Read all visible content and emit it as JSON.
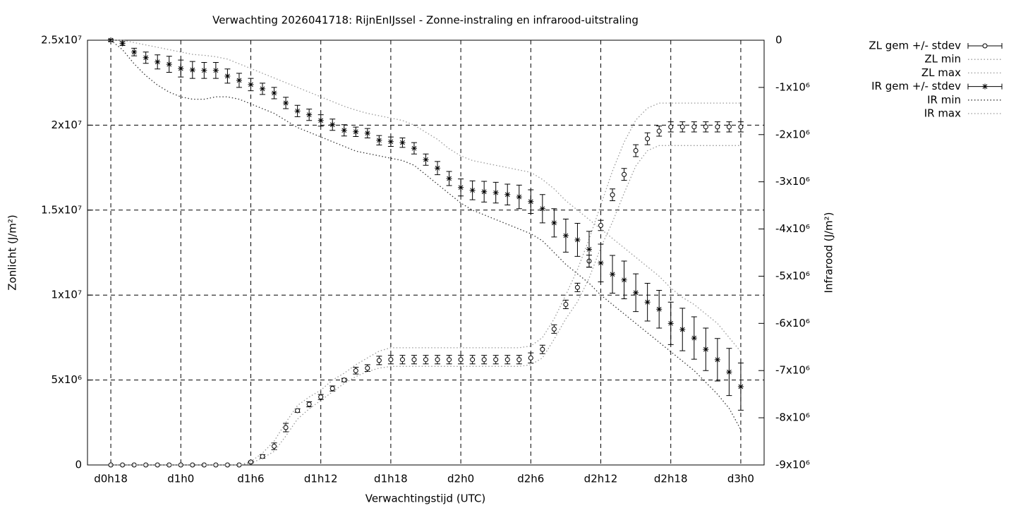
{
  "chart_data": {
    "type": "errorbar",
    "title": "Verwachting 2026041718: RijnEnIJssel - Zonne-instraling en infrarood-uitstraling",
    "x_label": "Verwachtingstijd (UTC)",
    "y_label": "Zonlicht (J/m²)",
    "y2_label": "Infrarood (J/m²)",
    "x": [
      18,
      19,
      20,
      21,
      22,
      23,
      24,
      25,
      26,
      27,
      28,
      29,
      30,
      31,
      32,
      33,
      34,
      35,
      36,
      37,
      38,
      39,
      40,
      41,
      42,
      43,
      44,
      45,
      46,
      47,
      48,
      49,
      50,
      51,
      52,
      53,
      54,
      55,
      56,
      57,
      58,
      59,
      60,
      61,
      62,
      63,
      64,
      65,
      66,
      67,
      68,
      69,
      70,
      71,
      72
    ],
    "xlim": [
      16,
      74
    ],
    "xticks": [
      {
        "value": 18,
        "label": "d0h18"
      },
      {
        "value": 24,
        "label": "d1h0"
      },
      {
        "value": 30,
        "label": "d1h6"
      },
      {
        "value": 36,
        "label": "d1h12"
      },
      {
        "value": 42,
        "label": "d1h18"
      },
      {
        "value": 48,
        "label": "d2h0"
      },
      {
        "value": 54,
        "label": "d2h6"
      },
      {
        "value": 60,
        "label": "d2h12"
      },
      {
        "value": 66,
        "label": "d2h18"
      },
      {
        "value": 72,
        "label": "d3h0"
      }
    ],
    "ylim": [
      0,
      25000000
    ],
    "yticks": [
      0,
      {
        "value": 5000000,
        "label": "5x10⁶"
      },
      {
        "value": 10000000,
        "label": "1x10⁷"
      },
      {
        "value": 15000000,
        "label": "1.5x10⁷"
      },
      {
        "value": 20000000,
        "label": "2x10⁷"
      },
      {
        "value": 25000000,
        "label": "2.5x10⁷"
      }
    ],
    "y2lim": [
      -9000000,
      0
    ],
    "y2ticks": [
      0,
      {
        "value": -1000000,
        "label": "-1x10⁶"
      },
      {
        "value": -2000000,
        "label": "-2x10⁶"
      },
      {
        "value": -3000000,
        "label": "-3x10⁶"
      },
      {
        "value": -4000000,
        "label": "-4x10⁶"
      },
      {
        "value": -5000000,
        "label": "-5x10⁶"
      },
      {
        "value": -6000000,
        "label": "-6x10⁶"
      },
      {
        "value": -7000000,
        "label": "-7x10⁶"
      },
      {
        "value": -8000000,
        "label": "-8x10⁶"
      },
      {
        "value": -9000000,
        "label": "-9x10⁶"
      }
    ],
    "grid": true,
    "legend": "outside-top-right",
    "series": [
      {
        "name": "ZL gem +/- stdev",
        "color": "#000000",
        "style": "errorbars",
        "marker": "circle",
        "axis": "y",
        "values": [
          0,
          0,
          0,
          0,
          0,
          0,
          0,
          0,
          0,
          0,
          0,
          0,
          170000.0,
          500000.0,
          1100000.0,
          2200000.0,
          3200000.0,
          3570000.0,
          4000000.0,
          4500000.0,
          5000000.0,
          5550000.0,
          5700000.0,
          6150000.0,
          6200000.0,
          6200000.0,
          6200000.0,
          6200000.0,
          6200000.0,
          6200000.0,
          6200000.0,
          6200000.0,
          6200000.0,
          6200000.0,
          6200000.0,
          6200000.0,
          6300000.0,
          6800000.0,
          8000000.0,
          9450000.0,
          10450000.0,
          12000000.0,
          14100000.0,
          15900000.0,
          17100000.0,
          18500000.0,
          19200000.0,
          19650000.0,
          19900000.0,
          19900000.0,
          19900000.0,
          19900000.0,
          19900000.0,
          19900000.0,
          19900000.0
        ],
        "error": [
          0,
          0,
          0,
          0,
          0,
          0,
          0,
          0,
          0,
          0,
          0,
          0,
          50000.0,
          100000.0,
          200000.0,
          250000.0,
          100000.0,
          150000.0,
          150000.0,
          150000.0,
          100000.0,
          200000.0,
          200000.0,
          250000.0,
          250000.0,
          250000.0,
          250000.0,
          250000.0,
          250000.0,
          250000.0,
          250000.0,
          250000.0,
          250000.0,
          250000.0,
          250000.0,
          250000.0,
          300000.0,
          250000.0,
          250000.0,
          250000.0,
          250000.0,
          350000.0,
          300000.0,
          350000.0,
          350000.0,
          350000.0,
          350000.0,
          300000.0,
          300000.0,
          300000.0,
          300000.0,
          300000.0,
          300000.0,
          300000.0,
          300000.0
        ]
      },
      {
        "name": "ZL min",
        "color": "#999999",
        "style": "dotted",
        "axis": "y",
        "values": [
          0,
          0,
          0,
          0,
          0,
          0,
          0,
          0,
          0,
          0,
          0,
          0,
          100000.0,
          400000.0,
          800000.0,
          1700000.0,
          2700000.0,
          3300000.0,
          3800000.0,
          4300000.0,
          4800000.0,
          5200000.0,
          5500000.0,
          5700000.0,
          5800000.0,
          5800000.0,
          5800000.0,
          5800000.0,
          5800000.0,
          5800000.0,
          5800000.0,
          5800000.0,
          5800000.0,
          5800000.0,
          5800000.0,
          5800000.0,
          5900000.0,
          6300000.0,
          7400000.0,
          8600000.0,
          9600000.0,
          11000000.0,
          12800000.0,
          14300000.0,
          16000000.0,
          17600000.0,
          18500000.0,
          18800000.0,
          18800000.0,
          18800000.0,
          18800000.0,
          18800000.0,
          18800000.0,
          18800000.0,
          18800000.0
        ]
      },
      {
        "name": "ZL max",
        "color": "#999999",
        "style": "dotted",
        "axis": "y",
        "values": [
          0,
          0,
          0,
          0,
          0,
          0,
          0,
          0,
          0,
          0,
          0,
          0,
          200000.0,
          700000.0,
          1400000.0,
          2500000.0,
          3500000.0,
          4000000.0,
          4400000.0,
          5000000.0,
          5400000.0,
          5900000.0,
          6300000.0,
          6700000.0,
          6900000.0,
          6900000.0,
          6900000.0,
          6900000.0,
          6900000.0,
          6900000.0,
          6900000.0,
          6900000.0,
          6900000.0,
          6900000.0,
          6900000.0,
          6900000.0,
          7000000.0,
          7500000.0,
          8600000.0,
          10000000.0,
          11500000.0,
          13300000.0,
          15300000.0,
          17300000.0,
          19000000.0,
          20300000.0,
          21000000.0,
          21300000.0,
          21300000.0,
          21300000.0,
          21300000.0,
          21300000.0,
          21300000.0,
          21300000.0,
          21300000.0
        ]
      },
      {
        "name": "IR gem +/- stdev",
        "color": "#000000",
        "style": "errorbars",
        "marker": "star",
        "axis": "y2",
        "values": [
          0,
          -70000.0,
          -250000.0,
          -370000.0,
          -460000.0,
          -510000.0,
          -600000.0,
          -630000.0,
          -640000.0,
          -640000.0,
          -760000.0,
          -850000.0,
          -940000.0,
          -1030000.0,
          -1120000.0,
          -1330000.0,
          -1500000.0,
          -1580000.0,
          -1700000.0,
          -1790000.0,
          -1910000.0,
          -1940000.0,
          -1970000.0,
          -2120000.0,
          -2150000.0,
          -2170000.0,
          -2290000.0,
          -2530000.0,
          -2710000.0,
          -2930000.0,
          -3120000.0,
          -3180000.0,
          -3210000.0,
          -3230000.0,
          -3270000.0,
          -3320000.0,
          -3420000.0,
          -3570000.0,
          -3870000.0,
          -4140000.0,
          -4230000.0,
          -4430000.0,
          -4720000.0,
          -4960000.0,
          -5080000.0,
          -5350000.0,
          -5550000.0,
          -5700000.0,
          -6000000.0,
          -6130000.0,
          -6310000.0,
          -6550000.0,
          -6770000.0,
          -7030000.0,
          -7340000.0
        ],
        "error": [
          20000.0,
          40000.0,
          80000.0,
          120000.0,
          150000.0,
          170000.0,
          180000.0,
          180000.0,
          170000.0,
          170000.0,
          150000.0,
          150000.0,
          130000.0,
          120000.0,
          120000.0,
          120000.0,
          120000.0,
          120000.0,
          120000.0,
          120000.0,
          120000.0,
          100000.0,
          100000.0,
          100000.0,
          100000.0,
          100000.0,
          120000.0,
          120000.0,
          140000.0,
          150000.0,
          180000.0,
          200000.0,
          220000.0,
          220000.0,
          220000.0,
          250000.0,
          250000.0,
          300000.0,
          300000.0,
          350000.0,
          350000.0,
          380000.0,
          400000.0,
          400000.0,
          400000.0,
          400000.0,
          400000.0,
          400000.0,
          450000.0,
          450000.0,
          450000.0,
          450000.0,
          450000.0,
          500000.0,
          500000.0
        ]
      },
      {
        "name": "IR min",
        "color": "#333333",
        "style": "dotted",
        "axis": "y2",
        "values": [
          0,
          -200000.0,
          -500000.0,
          -750000.0,
          -950000.0,
          -1100000.0,
          -1200000.0,
          -1250000.0,
          -1250000.0,
          -1200000.0,
          -1200000.0,
          -1250000.0,
          -1350000.0,
          -1450000.0,
          -1550000.0,
          -1700000.0,
          -1850000.0,
          -1950000.0,
          -2050000.0,
          -2150000.0,
          -2250000.0,
          -2350000.0,
          -2400000.0,
          -2450000.0,
          -2500000.0,
          -2550000.0,
          -2650000.0,
          -2850000.0,
          -3050000.0,
          -3250000.0,
          -3450000.0,
          -3600000.0,
          -3700000.0,
          -3800000.0,
          -3900000.0,
          -4000000.0,
          -4100000.0,
          -4250000.0,
          -4500000.0,
          -4750000.0,
          -4950000.0,
          -5150000.0,
          -5400000.0,
          -5600000.0,
          -5800000.0,
          -6000000.0,
          -6200000.0,
          -6400000.0,
          -6600000.0,
          -6800000.0,
          -7000000.0,
          -7250000.0,
          -7500000.0,
          -7800000.0,
          -8250000.0
        ]
      },
      {
        "name": "IR max",
        "color": "#999999",
        "style": "dotted",
        "axis": "y2",
        "values": [
          0,
          0,
          -50000.0,
          -100000.0,
          -150000.0,
          -200000.0,
          -250000.0,
          -300000.0,
          -320000.0,
          -350000.0,
          -400000.0,
          -500000.0,
          -600000.0,
          -700000.0,
          -800000.0,
          -900000.0,
          -1000000.0,
          -1100000.0,
          -1200000.0,
          -1300000.0,
          -1400000.0,
          -1480000.0,
          -1550000.0,
          -1600000.0,
          -1650000.0,
          -1700000.0,
          -1800000.0,
          -1950000.0,
          -2100000.0,
          -2300000.0,
          -2450000.0,
          -2550000.0,
          -2600000.0,
          -2650000.0,
          -2700000.0,
          -2750000.0,
          -2800000.0,
          -2950000.0,
          -3150000.0,
          -3400000.0,
          -3600000.0,
          -3800000.0,
          -4000000.0,
          -4200000.0,
          -4400000.0,
          -4600000.0,
          -4800000.0,
          -5000000.0,
          -5250000.0,
          -5450000.0,
          -5600000.0,
          -5800000.0,
          -6000000.0,
          -6300000.0,
          -6600000.0
        ]
      }
    ]
  }
}
